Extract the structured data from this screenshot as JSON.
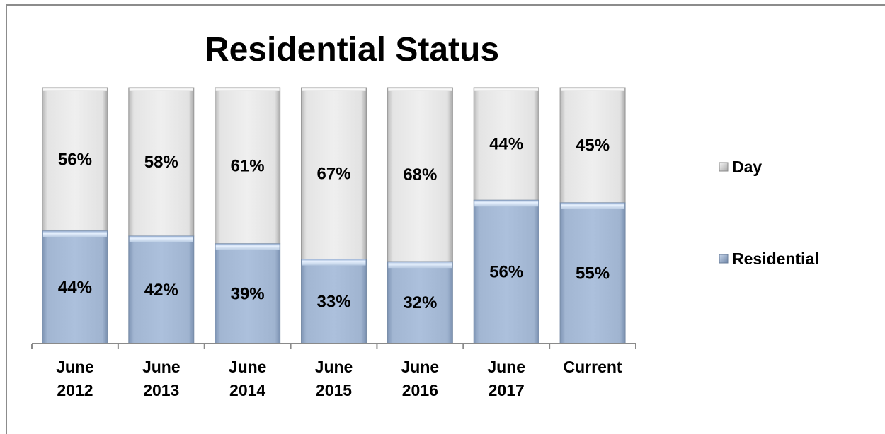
{
  "chart_data": {
    "type": "bar",
    "stacked": true,
    "title": "Residential Status",
    "xlabel": "",
    "ylabel": "",
    "ylim": [
      0,
      100
    ],
    "grid": false,
    "legend_position": "right",
    "categories": [
      [
        "June",
        "2012"
      ],
      [
        "June",
        "2013"
      ],
      [
        "June",
        "2014"
      ],
      [
        "June",
        "2015"
      ],
      [
        "June",
        "2016"
      ],
      [
        "June",
        "2017"
      ],
      [
        "Current"
      ]
    ],
    "series": [
      {
        "name": "Residential",
        "values": [
          44,
          42,
          39,
          33,
          32,
          56,
          55
        ],
        "labels": [
          "44%",
          "42%",
          "39%",
          "33%",
          "32%",
          "56%",
          "55%"
        ],
        "color": "#a8bcd8"
      },
      {
        "name": "Day",
        "values": [
          56,
          58,
          61,
          67,
          68,
          44,
          45
        ],
        "labels": [
          "56%",
          "58%",
          "61%",
          "67%",
          "68%",
          "44%",
          "45%"
        ],
        "color": "#ececec"
      }
    ],
    "legend": [
      {
        "name": "Day",
        "color": "#ececec"
      },
      {
        "name": "Residential",
        "color": "#a8bcd8"
      }
    ]
  }
}
